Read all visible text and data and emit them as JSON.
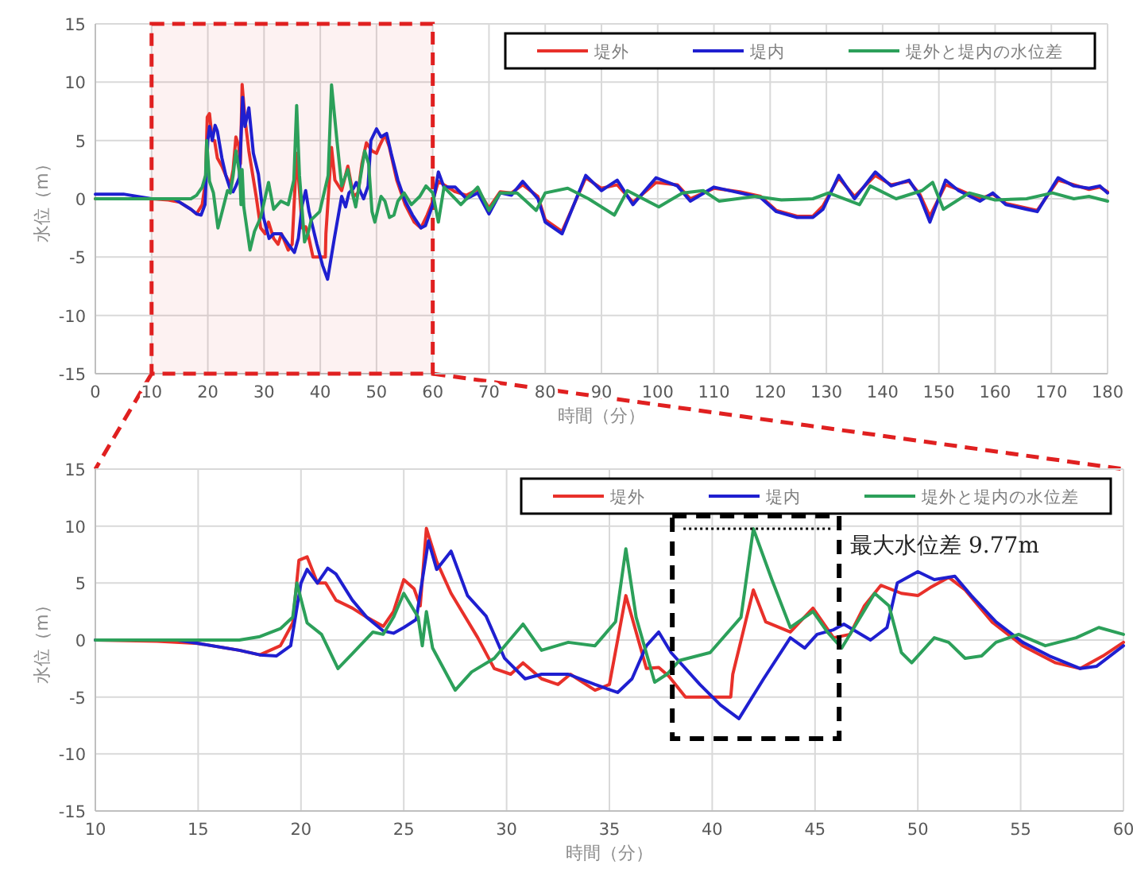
{
  "chart_data": [
    {
      "type": "line",
      "xlabel": "時間（分）",
      "ylabel": "水位（m）",
      "xlim": [
        0,
        180
      ],
      "ylim": [
        -15,
        15
      ],
      "xticks": [
        0,
        10,
        20,
        30,
        40,
        50,
        60,
        70,
        80,
        90,
        100,
        110,
        120,
        130,
        140,
        150,
        160,
        170,
        180
      ],
      "yticks": [
        -15,
        -10,
        -5,
        0,
        5,
        10,
        15
      ],
      "grid": true,
      "legend": "top right",
      "marker": "none",
      "line_style": "solid",
      "bands": [
        {
          "axis": "x",
          "from": 10,
          "to": 60,
          "color": "#e02020"
        }
      ],
      "series": [
        {
          "name": "堤外",
          "color": "#e8302a",
          "x": [
            0,
            5,
            10,
            13,
            15,
            17,
            18,
            19,
            19.6,
            19.9,
            20.3,
            20.8,
            21.2,
            21.7,
            22.5,
            23.2,
            24,
            24.5,
            25,
            25.5,
            25.8,
            26.1,
            26.6,
            27.3,
            28.6,
            29.4,
            30.2,
            30.8,
            31.7,
            32.5,
            33.1,
            34.3,
            35,
            35.8,
            36.3,
            36.8,
            37.4,
            37.9,
            38.7,
            40.9,
            41,
            42,
            42.6,
            43.8,
            44.9,
            45.9,
            46.7,
            47.4,
            48.2,
            49.2,
            50,
            50.6,
            51.5,
            52.3,
            53.6,
            55.1,
            56.7,
            57.9,
            59,
            60,
            61,
            62,
            64,
            66,
            68,
            70,
            72,
            74,
            76,
            78.7,
            80,
            83,
            87.2,
            90,
            92.8,
            95.6,
            99.7,
            103.5,
            105.8,
            110,
            114.6,
            118.3,
            121.1,
            124.8,
            127.6,
            129.4,
            132.2,
            135,
            138.7,
            141.5,
            144.7,
            146.6,
            148.4,
            151.2,
            153.5,
            157.3,
            159.6,
            161.9,
            165.6,
            167.5,
            171.2,
            174,
            176.7,
            178.6,
            180
          ],
          "values": [
            0,
            0,
            0,
            -0.1,
            -0.3,
            -0.9,
            -1.3,
            -0.5,
            1.5,
            7,
            7.3,
            5,
            5,
            3.5,
            2.8,
            2,
            1.2,
            2.5,
            5.3,
            4.5,
            3,
            9.8,
            6.9,
            4.1,
            0.2,
            -2.5,
            -3,
            -2,
            -3.4,
            -3.9,
            -3,
            -4.4,
            -3.9,
            3.9,
            0.7,
            -2.5,
            -2.4,
            -3.2,
            -5,
            -5,
            -3,
            4.4,
            1.6,
            0.7,
            2.8,
            0.2,
            0.5,
            3,
            4.8,
            4.1,
            3.9,
            4.6,
            5.5,
            4.4,
            1.6,
            -0.5,
            -2,
            -2.5,
            -1.4,
            -0.2,
            1.5,
            1.2,
            0.6,
            0.3,
            0.8,
            -0.8,
            0.6,
            0.5,
            1.2,
            0.2,
            -1.8,
            -2.8,
            1.8,
            0.9,
            1.2,
            -0.3,
            1.4,
            1.2,
            0,
            0.9,
            0.6,
            0.2,
            -1,
            -1.5,
            -1.5,
            -0.6,
            1.8,
            0.2,
            2,
            1.2,
            1.5,
            0.4,
            -1.5,
            1.2,
            0.8,
            0,
            0.4,
            -0.4,
            -0.8,
            -1,
            1.6,
            1.2,
            0.8,
            1,
            0.6
          ]
        },
        {
          "name": "堤内",
          "color": "#1f1fd0",
          "x": [
            0,
            5,
            10,
            14,
            15,
            17,
            18,
            18.8,
            19.5,
            20,
            20.3,
            20.8,
            21.3,
            21.7,
            22.5,
            23.2,
            24,
            24.5,
            25,
            25.6,
            26.2,
            26.6,
            27.3,
            28.1,
            29,
            29.9,
            30.9,
            31.7,
            33,
            34.3,
            35.4,
            36.1,
            36.8,
            37.4,
            38,
            39.4,
            40.4,
            41.3,
            42.5,
            43.8,
            44.5,
            45.1,
            45.9,
            46.4,
            47.7,
            48.5,
            49,
            50,
            50.8,
            51.8,
            52.6,
            53.8,
            55.1,
            56.4,
            57.9,
            58.7,
            60,
            61,
            62,
            64,
            66,
            68,
            70,
            72,
            74,
            76,
            78.7,
            80,
            83,
            87.2,
            90,
            92.8,
            95.6,
            99.7,
            103.5,
            105.8,
            110,
            114.6,
            118.3,
            121.1,
            124.8,
            127.6,
            129.4,
            132.2,
            135,
            138.7,
            141.5,
            144.7,
            146.6,
            148.4,
            151.2,
            153.5,
            157.3,
            159.6,
            161.9,
            165.6,
            167.5,
            171.2,
            174,
            176.7,
            178.6,
            180
          ],
          "values": [
            0.4,
            0.4,
            0,
            0,
            -0.3,
            -0.9,
            -1.3,
            -1.4,
            -0.5,
            5,
            6.2,
            5,
            6.3,
            5.8,
            3.5,
            2,
            0.8,
            0.6,
            1.1,
            1.8,
            8.7,
            6.2,
            7.8,
            3.9,
            2.1,
            -1.6,
            -3.4,
            -3,
            -3,
            -3.9,
            -4.6,
            -3.4,
            -0.5,
            0.7,
            -1.1,
            -3.9,
            -5.7,
            -6.9,
            -3.4,
            0.2,
            -0.7,
            0.5,
            0.9,
            1.4,
            0,
            1.1,
            5,
            6,
            5.3,
            5.6,
            3.9,
            1.6,
            -0.2,
            -1.4,
            -2.5,
            -2.3,
            -0.5,
            2.3,
            1,
            1,
            0,
            0.5,
            -1.3,
            0.5,
            0.3,
            1.5,
            0,
            -2,
            -3,
            2,
            0.7,
            1.6,
            -0.5,
            1.8,
            1.1,
            -0.2,
            1,
            0.5,
            0.1,
            -1.1,
            -1.6,
            -1.6,
            -0.9,
            2,
            0,
            2.3,
            1.1,
            1.6,
            0.2,
            -2,
            1.6,
            0.7,
            -0.2,
            0.5,
            -0.5,
            -0.9,
            -1.1,
            1.8,
            1.1,
            0.9,
            1.1,
            0.5
          ]
        },
        {
          "name": "堤外と堤内の水位差",
          "color": "#2ca05a",
          "x": [
            0,
            5,
            10,
            17,
            18,
            19,
            19.6,
            19.8,
            20.3,
            21,
            21.8,
            22.5,
            23.5,
            24,
            24.5,
            25,
            25.7,
            25.9,
            26.1,
            26.4,
            27.5,
            28.3,
            29.4,
            30.8,
            31.7,
            33,
            34.3,
            35.3,
            35.8,
            36.3,
            37.2,
            37.8,
            38.4,
            39.9,
            41.4,
            42,
            42.9,
            43.8,
            44.9,
            45.6,
            46.3,
            46.9,
            47.9,
            48.6,
            49.2,
            49.7,
            50.8,
            51.5,
            52.3,
            53.1,
            53.8,
            54.9,
            56.2,
            57.7,
            58.8,
            60,
            61,
            62,
            65,
            68,
            70,
            72,
            75,
            78.4,
            80,
            84,
            87.7,
            92.3,
            94.6,
            100.2,
            104.4,
            108.1,
            110.9,
            117.4,
            122,
            127.6,
            130.4,
            135.9,
            137.8,
            142.4,
            147,
            148.9,
            150.8,
            155.4,
            160,
            165.6,
            170.2,
            174,
            176.7,
            180
          ],
          "values": [
            0,
            0,
            0,
            0,
            0.3,
            1,
            2,
            5,
            1.5,
            0.5,
            -2.5,
            -1.2,
            0.7,
            0.5,
            2,
            4.1,
            2,
            -0.5,
            2.5,
            -0.7,
            -4.4,
            -2.8,
            -1.6,
            1.4,
            -0.9,
            -0.2,
            -0.5,
            1.6,
            8,
            2,
            -3.7,
            -3,
            -1.8,
            -1.1,
            2,
            9.77,
            5.3,
            1.1,
            2.5,
            0.7,
            -0.7,
            1.1,
            4.1,
            3,
            -1.1,
            -2,
            0.2,
            -0.2,
            -1.6,
            -1.4,
            -0.2,
            0.5,
            -0.5,
            0.2,
            1.1,
            0.5,
            -2,
            1,
            -0.5,
            1,
            -1,
            0.5,
            0.5,
            -1,
            0.5,
            0.9,
            0,
            -1.4,
            0.7,
            -0.7,
            0.5,
            0.7,
            -0.2,
            0.2,
            -0.1,
            0,
            0.5,
            -0.5,
            1.1,
            0,
            0.7,
            1.4,
            -0.9,
            0.5,
            -0.1,
            0,
            0.5,
            0,
            0.2,
            -0.2
          ]
        }
      ]
    },
    {
      "type": "line",
      "xlabel": "時間（分）",
      "ylabel": "水位（m）",
      "xlim": [
        10,
        60
      ],
      "ylim": [
        -15,
        15
      ],
      "xticks": [
        10,
        15,
        20,
        25,
        30,
        35,
        40,
        45,
        50,
        55,
        60
      ],
      "yticks": [
        -15,
        -10,
        -5,
        0,
        5,
        10,
        15
      ],
      "grid": true,
      "legend": "top right",
      "marker": "none",
      "line_style": "solid",
      "annotations": [
        "最大水位差 9.77m"
      ],
      "series": [
        {
          "name": "堤外",
          "color": "#e8302a",
          "x": [
            10,
            13,
            15,
            17,
            18,
            19,
            19.6,
            19.9,
            20.3,
            20.8,
            21.2,
            21.7,
            22.5,
            23.2,
            24,
            24.5,
            25,
            25.5,
            25.8,
            26.1,
            26.6,
            27.3,
            28.6,
            29.4,
            30.2,
            30.8,
            31.7,
            32.5,
            33.1,
            34.3,
            35,
            35.8,
            36.3,
            36.8,
            37.4,
            37.9,
            38.7,
            40.9,
            41,
            42,
            42.6,
            43.8,
            44.9,
            45.9,
            46.7,
            47.4,
            48.2,
            49.2,
            50,
            50.6,
            51.5,
            52.3,
            53.6,
            55.1,
            56.7,
            57.9,
            59,
            60
          ],
          "values": [
            0,
            -0.1,
            -0.3,
            -0.9,
            -1.3,
            -0.5,
            1.5,
            7,
            7.3,
            5,
            5,
            3.5,
            2.8,
            2,
            1.2,
            2.5,
            5.3,
            4.5,
            3,
            9.8,
            6.9,
            4.1,
            0.2,
            -2.5,
            -3,
            -2,
            -3.4,
            -3.9,
            -3,
            -4.4,
            -3.9,
            3.9,
            0.7,
            -2.5,
            -2.4,
            -3.2,
            -5,
            -5,
            -3,
            4.4,
            1.6,
            0.7,
            2.8,
            0.2,
            0.5,
            3,
            4.8,
            4.1,
            3.9,
            4.6,
            5.5,
            4.4,
            1.6,
            -0.5,
            -2,
            -2.5,
            -1.4,
            -0.2
          ]
        },
        {
          "name": "堤内",
          "color": "#1f1fd0",
          "x": [
            10,
            14,
            15,
            17,
            18,
            18.8,
            19.5,
            20,
            20.3,
            20.8,
            21.3,
            21.7,
            22.5,
            23.2,
            24,
            24.5,
            25,
            25.6,
            26.2,
            26.6,
            27.3,
            28.1,
            29,
            29.9,
            30.9,
            31.7,
            33,
            34.3,
            35.4,
            36.1,
            36.8,
            37.4,
            38,
            39.4,
            40.4,
            41.3,
            42.5,
            43.8,
            44.5,
            45.1,
            45.9,
            46.4,
            47.7,
            48.5,
            49,
            50,
            50.8,
            51.8,
            52.6,
            53.8,
            55.1,
            56.4,
            57.9,
            58.7,
            60
          ],
          "values": [
            0,
            0,
            -0.3,
            -0.9,
            -1.3,
            -1.4,
            -0.5,
            5,
            6.2,
            5,
            6.3,
            5.8,
            3.5,
            2,
            0.8,
            0.6,
            1.1,
            1.8,
            8.7,
            6.2,
            7.8,
            3.9,
            2.1,
            -1.6,
            -3.4,
            -3,
            -3,
            -3.9,
            -4.6,
            -3.4,
            -0.5,
            0.7,
            -1.1,
            -3.9,
            -5.7,
            -6.9,
            -3.4,
            0.2,
            -0.7,
            0.5,
            0.9,
            1.4,
            0,
            1.1,
            5,
            6,
            5.3,
            5.6,
            3.9,
            1.6,
            -0.2,
            -1.4,
            -2.5,
            -2.3,
            -0.5
          ]
        },
        {
          "name": "堤外と堤内の水位差",
          "color": "#2ca05a",
          "x": [
            10,
            17,
            18,
            19,
            19.6,
            19.8,
            20.3,
            21,
            21.8,
            22.5,
            23.5,
            24,
            24.5,
            25,
            25.7,
            25.9,
            26.1,
            26.4,
            27.5,
            28.3,
            29.4,
            30.8,
            31.7,
            33,
            34.3,
            35.3,
            35.8,
            36.3,
            37.2,
            37.8,
            38.4,
            39.9,
            41.4,
            42,
            42.9,
            43.8,
            44.9,
            45.6,
            46.3,
            46.9,
            47.9,
            48.6,
            49.2,
            49.7,
            50.8,
            51.5,
            52.3,
            53.1,
            53.8,
            54.9,
            56.2,
            57.7,
            58.8,
            60
          ],
          "values": [
            0,
            0,
            0.3,
            1,
            2,
            5,
            1.5,
            0.5,
            -2.5,
            -1.2,
            0.7,
            0.5,
            2,
            4.1,
            2,
            -0.5,
            2.5,
            -0.7,
            -4.4,
            -2.8,
            -1.6,
            1.4,
            -0.9,
            -0.2,
            -0.5,
            1.6,
            8,
            2,
            -3.7,
            -3,
            -1.8,
            -1.1,
            2,
            9.77,
            5.3,
            1.1,
            2.5,
            0.7,
            -0.7,
            1.1,
            4.1,
            3,
            -1.1,
            -2,
            0.2,
            -0.2,
            -1.6,
            -1.4,
            -0.2,
            0.5,
            -0.5,
            0.2,
            1.1,
            0.5
          ]
        }
      ]
    }
  ]
}
